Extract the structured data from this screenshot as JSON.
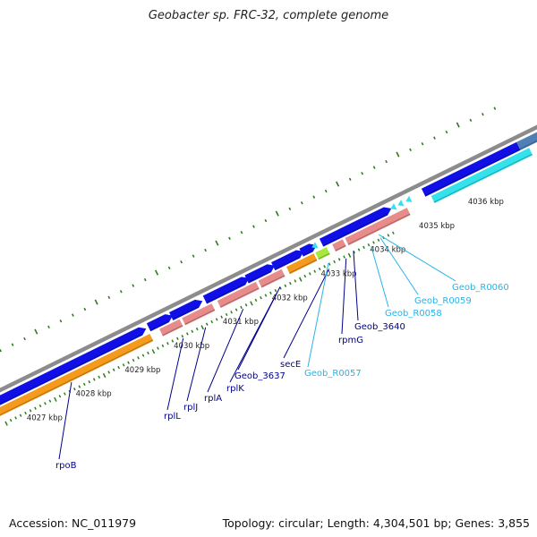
{
  "title": "Geobacter sp. FRC-32, complete genome",
  "footer": {
    "accession": "Accession: NC_011979",
    "topology": "Topology: circular; Length: 4,304,501 bp; Genes: 3,855"
  },
  "colors": {
    "backbone": "#8c8c8c",
    "blue_gene": "#1010e6",
    "orange_gene": "#f49a1c",
    "pink_gene": "#e88b8b",
    "green_gene": "#a6e83c",
    "cyan_rna": "#34e2ec",
    "steel": "#4f7fb5",
    "tick": "#2e7d1f",
    "label_dark": "#00008b",
    "label_light": "#29b3e6"
  },
  "kbp_labels": [
    "4027 kbp",
    "4028 kbp",
    "4029 kbp",
    "4030 kbp",
    "4031 kbp",
    "4032 kbp",
    "4033 kbp",
    "4034 kbp",
    "4035 kbp",
    "4036 kbp"
  ],
  "gene_labels": [
    {
      "text": "rpoB",
      "tone": "dark"
    },
    {
      "text": "rplL",
      "tone": "dark"
    },
    {
      "text": "rplJ",
      "tone": "dark"
    },
    {
      "text": "rplA",
      "tone": "dark"
    },
    {
      "text": "rplK",
      "tone": "dark"
    },
    {
      "text": "Geob_3637",
      "tone": "dark"
    },
    {
      "text": "secE",
      "tone": "dark"
    },
    {
      "text": "Geob_R0057",
      "tone": "light"
    },
    {
      "text": "rpmG",
      "tone": "dark"
    },
    {
      "text": "Geob_3640",
      "tone": "dark"
    },
    {
      "text": "Geob_R0058",
      "tone": "light"
    },
    {
      "text": "Geob_R0059",
      "tone": "light"
    },
    {
      "text": "Geob_R0060",
      "tone": "light"
    }
  ]
}
